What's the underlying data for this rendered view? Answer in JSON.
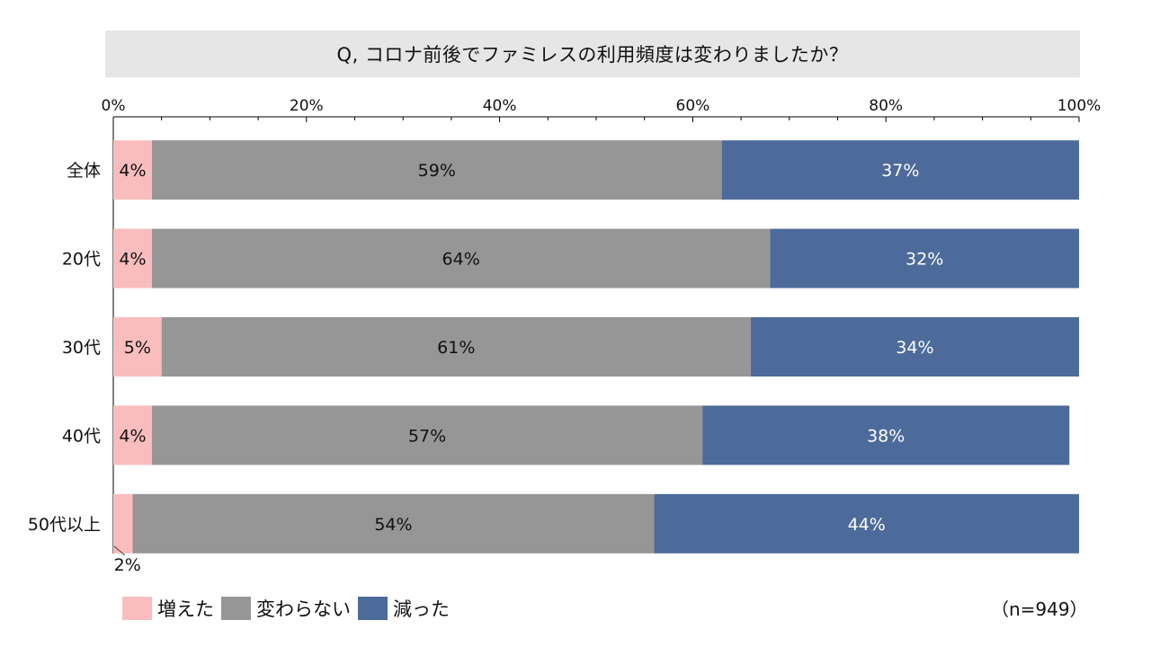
{
  "chart_data": {
    "type": "bar",
    "orientation": "horizontal",
    "stacked": true,
    "title": "Q, コロナ前後でファミレスの利用頻度は変わりましたか？",
    "categories": [
      "全体",
      "20代",
      "30代",
      "40代",
      "50代以上"
    ],
    "series": [
      {
        "name": "増えた",
        "color": "#f9bdbd",
        "values": [
          4,
          4,
          5,
          4,
          2
        ],
        "labels": [
          "4%",
          "4%",
          "5%",
          "4%",
          "2%"
        ],
        "label_color": "#111111"
      },
      {
        "name": "変わらない",
        "color": "#969696",
        "values": [
          59,
          64,
          61,
          57,
          54
        ],
        "labels": [
          "59%",
          "64%",
          "61%",
          "57%",
          "54%"
        ],
        "label_color": "#111111"
      },
      {
        "name": "減った",
        "color": "#4d6b9a",
        "values": [
          37,
          32,
          34,
          38,
          44
        ],
        "labels": [
          "37%",
          "32%",
          "34%",
          "38%",
          "44%"
        ],
        "label_color": "#ffffff"
      }
    ],
    "x_ticks": [
      "0%",
      "20%",
      "40%",
      "60%",
      "80%",
      "100%"
    ],
    "xlim": [
      0,
      100
    ],
    "grid": false,
    "legend_position": "bottom-left",
    "note": "（n=949）"
  }
}
